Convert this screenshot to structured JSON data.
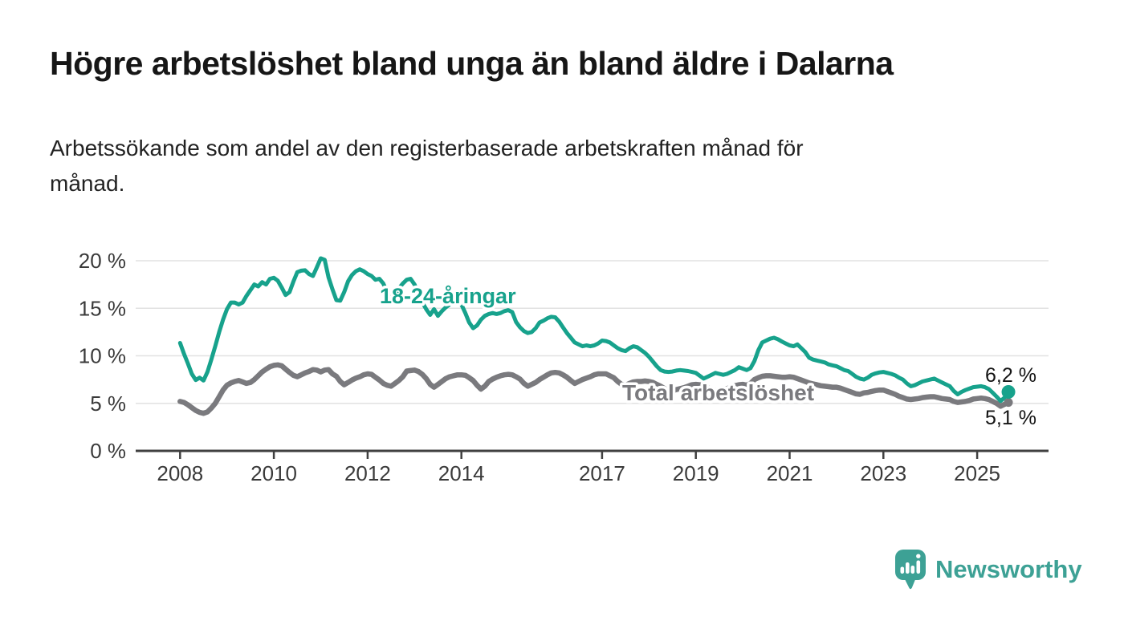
{
  "header": {
    "title": "Högre arbetslöshet bland unga än bland äldre i Dalarna",
    "subtitle_lines": [
      "Arbetssökande som andel av den registerbaserade arbetskraften månad för",
      "månad."
    ]
  },
  "footer": {
    "brand": "Newsworthy",
    "logo_icon": "speech-bubble-bar-chart-icon",
    "brand_color": "#3da195"
  },
  "colors": {
    "youth_line": "#17a28c",
    "total_line": "#7a7a7e",
    "axis": "#404040",
    "gridline": "#e2e2e2",
    "end_label_text": "#141414"
  },
  "chart_data": {
    "type": "line",
    "frequency": "monthly",
    "x_start": "2008-01",
    "x_end": "2025-09",
    "ylim": [
      0,
      21.5
    ],
    "grid": true,
    "legend_position": "inline-labels",
    "y_ticks": {
      "values": [
        0,
        5,
        10,
        15,
        20
      ],
      "labels": [
        "0 %",
        "5 %",
        "10 %",
        "15 %",
        "20 %"
      ]
    },
    "x_ticks": {
      "years": [
        2008,
        2010,
        2012,
        2014,
        2017,
        2019,
        2021,
        2023,
        2025
      ],
      "labels": [
        "2008",
        "2010",
        "2012",
        "2014",
        "2017",
        "2019",
        "2021",
        "2023",
        "2025"
      ]
    },
    "series": [
      {
        "name": "Total arbetslöshet",
        "color": "#7a7a7e",
        "end_label": "5,1 %",
        "end_value": 5.1,
        "values": [
          5.2,
          5.1,
          4.85,
          4.55,
          4.25,
          4.05,
          3.95,
          4.1,
          4.5,
          5.0,
          5.7,
          6.4,
          6.9,
          7.15,
          7.3,
          7.4,
          7.25,
          7.1,
          7.2,
          7.5,
          7.9,
          8.3,
          8.6,
          8.85,
          9.0,
          9.05,
          8.95,
          8.6,
          8.25,
          7.95,
          7.8,
          8.0,
          8.2,
          8.35,
          8.55,
          8.5,
          8.3,
          8.5,
          8.55,
          8.1,
          7.85,
          7.3,
          6.95,
          7.2,
          7.45,
          7.65,
          7.8,
          8.0,
          8.1,
          8.05,
          7.75,
          7.45,
          7.1,
          6.9,
          6.8,
          7.1,
          7.4,
          7.8,
          8.4,
          8.45,
          8.5,
          8.35,
          8.05,
          7.6,
          7.0,
          6.7,
          7.0,
          7.3,
          7.6,
          7.8,
          7.9,
          8.0,
          8.0,
          7.95,
          7.7,
          7.4,
          6.9,
          6.5,
          6.8,
          7.3,
          7.55,
          7.75,
          7.9,
          8.0,
          8.05,
          8.0,
          7.8,
          7.55,
          7.1,
          6.8,
          7.0,
          7.2,
          7.5,
          7.75,
          8.0,
          8.2,
          8.25,
          8.2,
          8.0,
          7.75,
          7.4,
          7.1,
          7.3,
          7.5,
          7.65,
          7.8,
          8.0,
          8.1,
          8.1,
          8.1,
          7.9,
          7.7,
          7.3,
          7.0,
          6.9,
          7.1,
          7.25,
          7.3,
          7.3,
          7.35,
          7.3,
          7.2,
          7.0,
          6.8,
          6.55,
          6.35,
          6.3,
          6.45,
          6.55,
          6.65,
          6.8,
          6.95,
          7.0,
          6.95,
          6.8,
          6.65,
          6.45,
          6.3,
          6.35,
          6.45,
          6.55,
          6.7,
          6.85,
          6.95,
          7.0,
          6.9,
          7.1,
          7.5,
          7.7,
          7.85,
          7.9,
          7.9,
          7.85,
          7.8,
          7.75,
          7.75,
          7.8,
          7.75,
          7.6,
          7.45,
          7.3,
          7.15,
          7.05,
          6.95,
          6.85,
          6.8,
          6.75,
          6.7,
          6.7,
          6.6,
          6.45,
          6.3,
          6.15,
          6.0,
          5.95,
          6.1,
          6.15,
          6.25,
          6.35,
          6.4,
          6.4,
          6.25,
          6.1,
          5.95,
          5.75,
          5.6,
          5.45,
          5.4,
          5.45,
          5.5,
          5.6,
          5.65,
          5.7,
          5.7,
          5.6,
          5.5,
          5.45,
          5.4,
          5.2,
          5.1,
          5.15,
          5.2,
          5.3,
          5.45,
          5.5,
          5.55,
          5.5,
          5.4,
          5.2,
          5.0,
          4.7,
          4.9,
          5.1
        ]
      },
      {
        "name": "18-24-åringar",
        "color": "#17a28c",
        "end_label": "6,2 %",
        "end_value": 6.2,
        "values": [
          11.35,
          10.2,
          9.2,
          8.1,
          7.45,
          7.7,
          7.4,
          8.3,
          9.6,
          11.0,
          12.5,
          13.8,
          14.9,
          15.6,
          15.6,
          15.4,
          15.6,
          16.3,
          16.9,
          17.5,
          17.3,
          17.75,
          17.5,
          18.1,
          18.2,
          17.9,
          17.2,
          16.4,
          16.7,
          17.8,
          18.8,
          18.95,
          19.0,
          18.6,
          18.4,
          19.3,
          20.25,
          20.1,
          18.25,
          17.0,
          15.85,
          15.8,
          16.7,
          17.85,
          18.5,
          18.9,
          19.1,
          18.9,
          18.6,
          18.4,
          18.0,
          18.1,
          17.6,
          16.7,
          15.9,
          16.4,
          17.1,
          17.6,
          18.0,
          18.1,
          17.5,
          16.6,
          15.6,
          14.9,
          14.3,
          14.9,
          14.2,
          14.7,
          15.1,
          15.4,
          15.5,
          15.5,
          15.4,
          14.5,
          13.5,
          12.9,
          13.2,
          13.8,
          14.2,
          14.4,
          14.5,
          14.4,
          14.5,
          14.7,
          14.8,
          14.6,
          13.55,
          13.0,
          12.6,
          12.4,
          12.5,
          12.9,
          13.5,
          13.7,
          13.95,
          14.1,
          14.05,
          13.6,
          13.0,
          12.4,
          11.9,
          11.4,
          11.2,
          11.0,
          11.1,
          11.0,
          11.1,
          11.3,
          11.6,
          11.55,
          11.4,
          11.1,
          10.8,
          10.6,
          10.5,
          10.8,
          11.0,
          10.9,
          10.6,
          10.3,
          9.9,
          9.4,
          8.9,
          8.5,
          8.35,
          8.3,
          8.35,
          8.45,
          8.5,
          8.45,
          8.4,
          8.3,
          8.2,
          7.9,
          7.6,
          7.8,
          8.0,
          8.2,
          8.1,
          8.0,
          8.1,
          8.3,
          8.5,
          8.8,
          8.65,
          8.5,
          8.7,
          9.45,
          10.6,
          11.4,
          11.6,
          11.8,
          11.9,
          11.75,
          11.5,
          11.3,
          11.1,
          11.0,
          11.2,
          10.8,
          10.4,
          9.8,
          9.6,
          9.5,
          9.4,
          9.3,
          9.1,
          9.0,
          8.9,
          8.7,
          8.5,
          8.4,
          8.1,
          7.8,
          7.6,
          7.5,
          7.7,
          8.0,
          8.15,
          8.25,
          8.3,
          8.2,
          8.1,
          7.95,
          7.7,
          7.5,
          7.1,
          6.8,
          6.9,
          7.1,
          7.3,
          7.4,
          7.5,
          7.6,
          7.4,
          7.2,
          7.0,
          6.8,
          6.3,
          5.95,
          6.2,
          6.4,
          6.55,
          6.7,
          6.75,
          6.8,
          6.7,
          6.5,
          6.1,
          5.7,
          5.25,
          5.6,
          6.2
        ]
      }
    ]
  }
}
